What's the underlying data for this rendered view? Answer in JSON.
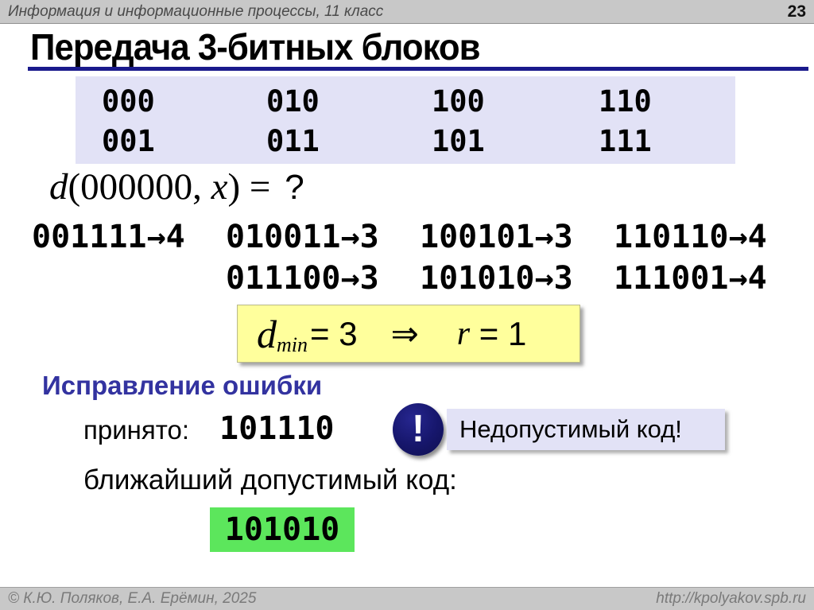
{
  "topbar": {
    "course_title": "Информация и информационные процессы, 11 класс",
    "page_number": "23"
  },
  "slide": {
    "title": "Передача 3-битных блоков"
  },
  "code_table": {
    "row1": [
      "000",
      "010",
      "100",
      "110"
    ],
    "row2": [
      "001",
      "011",
      "101",
      "111"
    ]
  },
  "formula": {
    "func": "d",
    "open": "(000000, ",
    "var": "x",
    "close": ") = ",
    "result": "?"
  },
  "distances": {
    "row1": [
      "001111→4",
      "010011→3",
      "100101→3",
      "110110→4"
    ],
    "row2": [
      "011100→3",
      "101010→3",
      "111001→4"
    ]
  },
  "dmin": {
    "d": "d",
    "sub": "min",
    "eq": "= 3",
    "implies": "⇒",
    "r": "r",
    "req": " = 1"
  },
  "correction": {
    "heading": "Исправление ошибки",
    "received_label": "принято:",
    "received_value": "101110",
    "warning_icon": "!",
    "warning_text": "Недопустимый код!",
    "nearest_label": "ближайший допустимый код:",
    "nearest_value": "101010"
  },
  "footer": {
    "copyright": "© К.Ю. Поляков, Е.А. Ерёмин, 2025",
    "url": "http://kpolyakov.spb.ru"
  },
  "colors": {
    "accent_navy": "#1A1A8C",
    "panel_lavender": "#E2E2F6",
    "highlight_yellow": "#FFFF9C",
    "highlight_green": "#5CE65C",
    "heading_blue": "#3333A0",
    "bar_gray": "#C8C8C8"
  }
}
